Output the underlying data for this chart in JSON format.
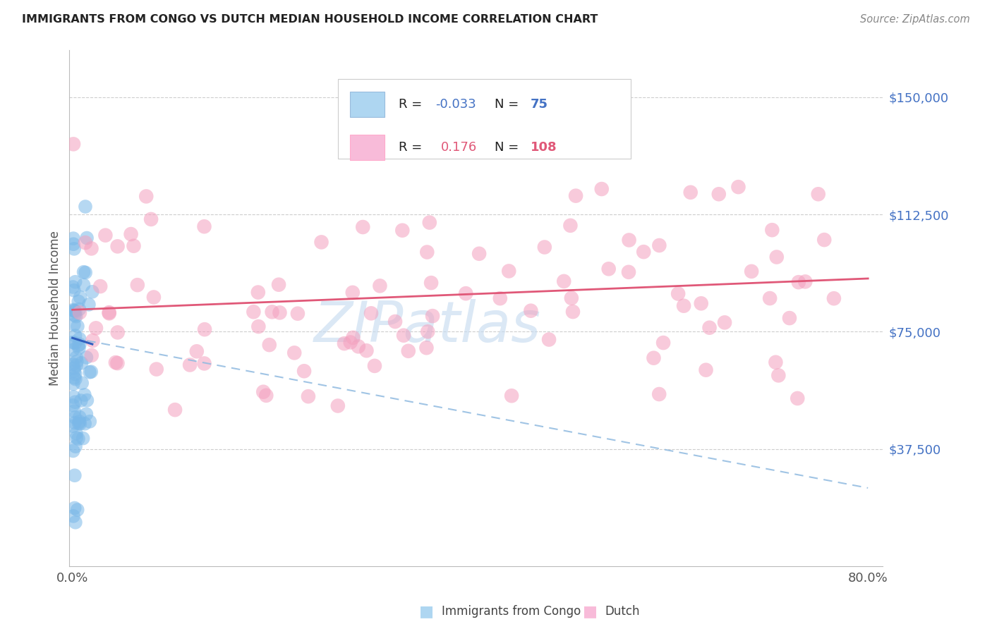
{
  "title": "IMMIGRANTS FROM CONGO VS DUTCH MEDIAN HOUSEHOLD INCOME CORRELATION CHART",
  "source": "Source: ZipAtlas.com",
  "ylabel": "Median Household Income",
  "ytick_vals": [
    37500,
    75000,
    112500,
    150000
  ],
  "ytick_labels": [
    "$37,500",
    "$75,000",
    "$112,500",
    "$150,000"
  ],
  "ylim": [
    0,
    165000
  ],
  "xlim": [
    -0.003,
    0.815
  ],
  "xtick_labels": [
    "0.0%",
    "80.0%"
  ],
  "xtick_vals": [
    0.0,
    0.8
  ],
  "blue_color": "#7BB8E8",
  "pink_color": "#F4A0BE",
  "trend_blue_solid_color": "#3060C0",
  "trend_blue_dash_color": "#90BAE0",
  "trend_pink_color": "#E05878",
  "watermark": "ZIPatlas",
  "watermark_color": "#C8DCF0",
  "background": "#FFFFFF",
  "grid_color": "#C8C8C8",
  "legend_r1_text": "R = ",
  "legend_r1_val": "-0.033",
  "legend_n1_label": "N = ",
  "legend_n1_val": "75",
  "legend_r2_text": "R =  ",
  "legend_r2_val": "0.176",
  "legend_n2_label": "N = ",
  "legend_n2_val": "108",
  "blue_label": "Immigrants from Congo",
  "pink_label": "Dutch",
  "axis_label_color": "#4472C4",
  "title_color": "#222222",
  "source_color": "#888888",
  "blue_swatch_color": "#AED6F1",
  "pink_swatch_color": "#F8BBD9",
  "blue_swatch_edge": "#99BBDD",
  "pink_swatch_edge": "#FFAACC"
}
